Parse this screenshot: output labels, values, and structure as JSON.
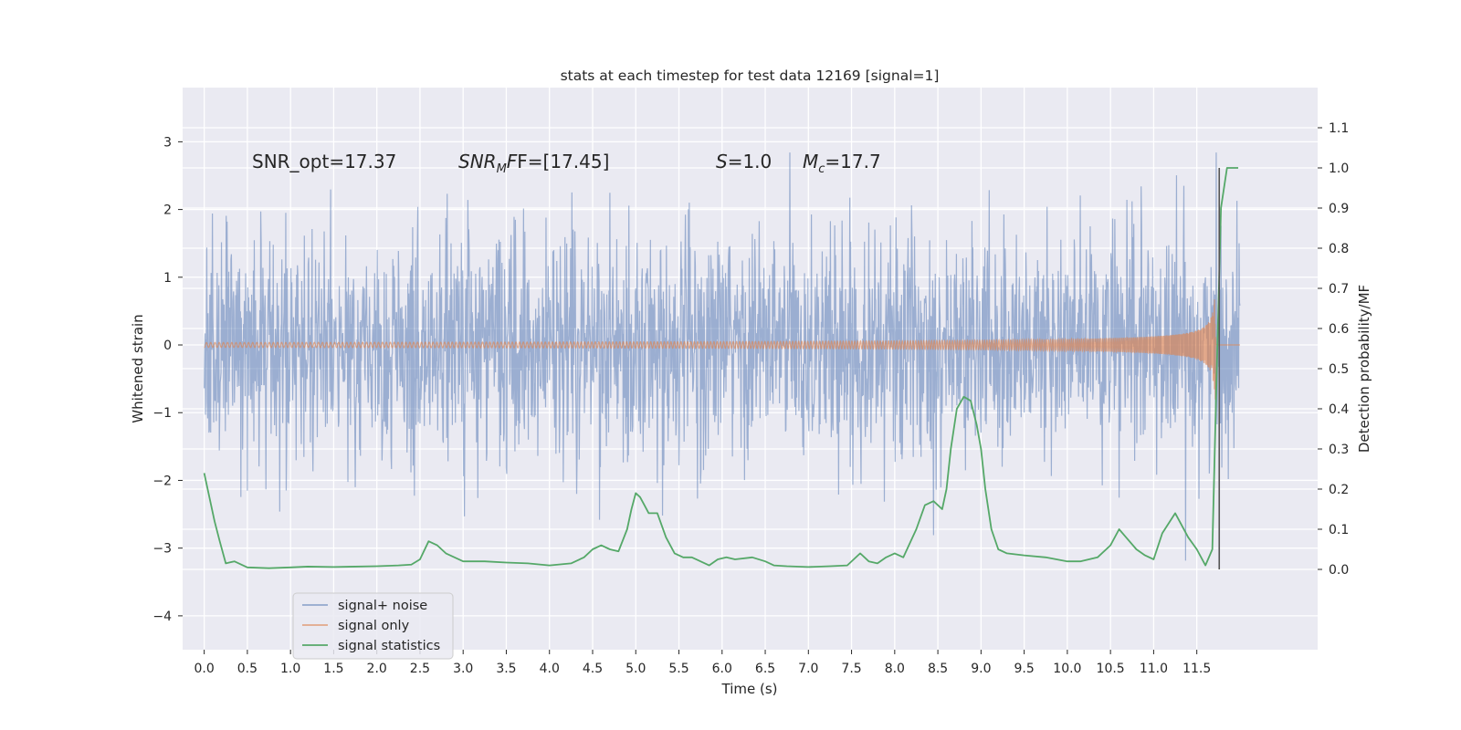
{
  "chart_data": {
    "type": "line",
    "title": "stats at each timestep for test data 12169 [signal=1]",
    "xlabel": "Time (s)",
    "ylabel_left": "Whitened strain",
    "ylabel_right": "Detection probability/MF",
    "xlim": [
      -0.25,
      12.9
    ],
    "ylim_left": [
      -4.5,
      3.8
    ],
    "ylim_right": [
      -0.2,
      1.2
    ],
    "x_ticks": [
      0,
      0.5,
      1,
      1.5,
      2,
      2.5,
      3,
      3.5,
      4,
      4.5,
      5,
      5.5,
      6,
      6.5,
      7,
      7.5,
      8,
      8.5,
      9,
      9.5,
      10,
      10.5,
      11,
      11.5
    ],
    "x_tick_labels": [
      "0.0",
      "0.5",
      "1.0",
      "1.5",
      "2.0",
      "2.5",
      "3.0",
      "3.5",
      "4.0",
      "4.5",
      "5.0",
      "5.5",
      "6.0",
      "6.5",
      "7.0",
      "7.5",
      "8.0",
      "8.5",
      "9.0",
      "9.5",
      "10.0",
      "10.5",
      "11.0",
      "11.5"
    ],
    "y_ticks_left": [
      -4,
      -3,
      -2,
      -1,
      0,
      1,
      2,
      3
    ],
    "y_tick_labels_left": [
      "−4",
      "−3",
      "−2",
      "−1",
      "0",
      "1",
      "2",
      "3"
    ],
    "y_ticks_right": [
      0.0,
      0.1,
      0.2,
      0.3,
      0.4,
      0.5,
      0.6,
      0.7,
      0.8,
      0.9,
      1.0,
      1.1
    ],
    "y_tick_labels_right": [
      "0.0",
      "0.1",
      "0.2",
      "0.3",
      "0.4",
      "0.5",
      "0.6",
      "0.7",
      "0.8",
      "0.9",
      "1.0",
      "1.1"
    ],
    "grid": true,
    "legend_position": "lower-left",
    "annotations": {
      "snr_opt": "SNR_opt=17.37",
      "snr_mf_main": "SNR",
      "snr_mf_sub": "M",
      "snr_mf_rest": "F=[17.45]",
      "s_sym": "S",
      "s_val": "=1.0",
      "mc_sym": "M",
      "mc_sub": "c",
      "mc_val": "=17.7"
    },
    "series": [
      {
        "name": "signal+ noise",
        "color": "#4c72b0",
        "axis": "left",
        "x_range": [
          0.0,
          12.0
        ],
        "noise_std": 0.85,
        "envelope_max": [
          3.2,
          -4.0
        ]
      },
      {
        "name": "signal only",
        "color": "#dd8452",
        "axis": "left",
        "x_range": [
          0.0,
          12.0
        ],
        "chirp_merger_time": 11.72,
        "peak_amplitude": 2.6
      },
      {
        "name": "signal statistics",
        "color": "#55a868",
        "axis": "right",
        "x": [
          0.0,
          0.12,
          0.18,
          0.25,
          0.35,
          0.5,
          0.75,
          1.0,
          1.2,
          1.5,
          1.75,
          2.0,
          2.25,
          2.4,
          2.5,
          2.6,
          2.7,
          2.8,
          3.0,
          3.25,
          3.5,
          3.75,
          4.0,
          4.25,
          4.4,
          4.5,
          4.6,
          4.7,
          4.8,
          4.9,
          4.95,
          5.0,
          5.05,
          5.1,
          5.15,
          5.25,
          5.35,
          5.45,
          5.55,
          5.65,
          5.75,
          5.85,
          5.95,
          6.05,
          6.15,
          6.35,
          6.5,
          6.6,
          6.75,
          7.0,
          7.25,
          7.45,
          7.6,
          7.7,
          7.8,
          7.9,
          8.0,
          8.1,
          8.25,
          8.35,
          8.45,
          8.55,
          8.6,
          8.65,
          8.72,
          8.8,
          8.88,
          8.95,
          9.0,
          9.05,
          9.12,
          9.2,
          9.3,
          9.5,
          9.75,
          10.0,
          10.15,
          10.35,
          10.5,
          10.6,
          10.68,
          10.8,
          10.9,
          11.0,
          11.1,
          11.25,
          11.4,
          11.5,
          11.6,
          11.68,
          11.72,
          11.78,
          11.85,
          11.9,
          11.98
        ],
        "y": [
          0.24,
          0.12,
          0.07,
          0.015,
          0.02,
          0.005,
          0.003,
          0.005,
          0.007,
          0.006,
          0.007,
          0.008,
          0.01,
          0.012,
          0.025,
          0.07,
          0.06,
          0.04,
          0.02,
          0.02,
          0.017,
          0.015,
          0.01,
          0.015,
          0.03,
          0.05,
          0.06,
          0.05,
          0.045,
          0.1,
          0.15,
          0.19,
          0.18,
          0.16,
          0.14,
          0.14,
          0.08,
          0.04,
          0.03,
          0.03,
          0.02,
          0.01,
          0.025,
          0.03,
          0.025,
          0.03,
          0.02,
          0.01,
          0.008,
          0.006,
          0.008,
          0.01,
          0.04,
          0.02,
          0.015,
          0.03,
          0.04,
          0.03,
          0.1,
          0.16,
          0.17,
          0.15,
          0.2,
          0.3,
          0.4,
          0.43,
          0.42,
          0.36,
          0.3,
          0.2,
          0.1,
          0.05,
          0.04,
          0.035,
          0.03,
          0.02,
          0.02,
          0.03,
          0.06,
          0.1,
          0.08,
          0.05,
          0.035,
          0.025,
          0.09,
          0.14,
          0.08,
          0.05,
          0.01,
          0.05,
          0.4,
          0.9,
          1.0,
          1.0,
          1.0
        ]
      }
    ],
    "vertical_marker": {
      "x": 11.76,
      "y_range_right": [
        0.0,
        1.0
      ],
      "color": "#555555"
    }
  }
}
